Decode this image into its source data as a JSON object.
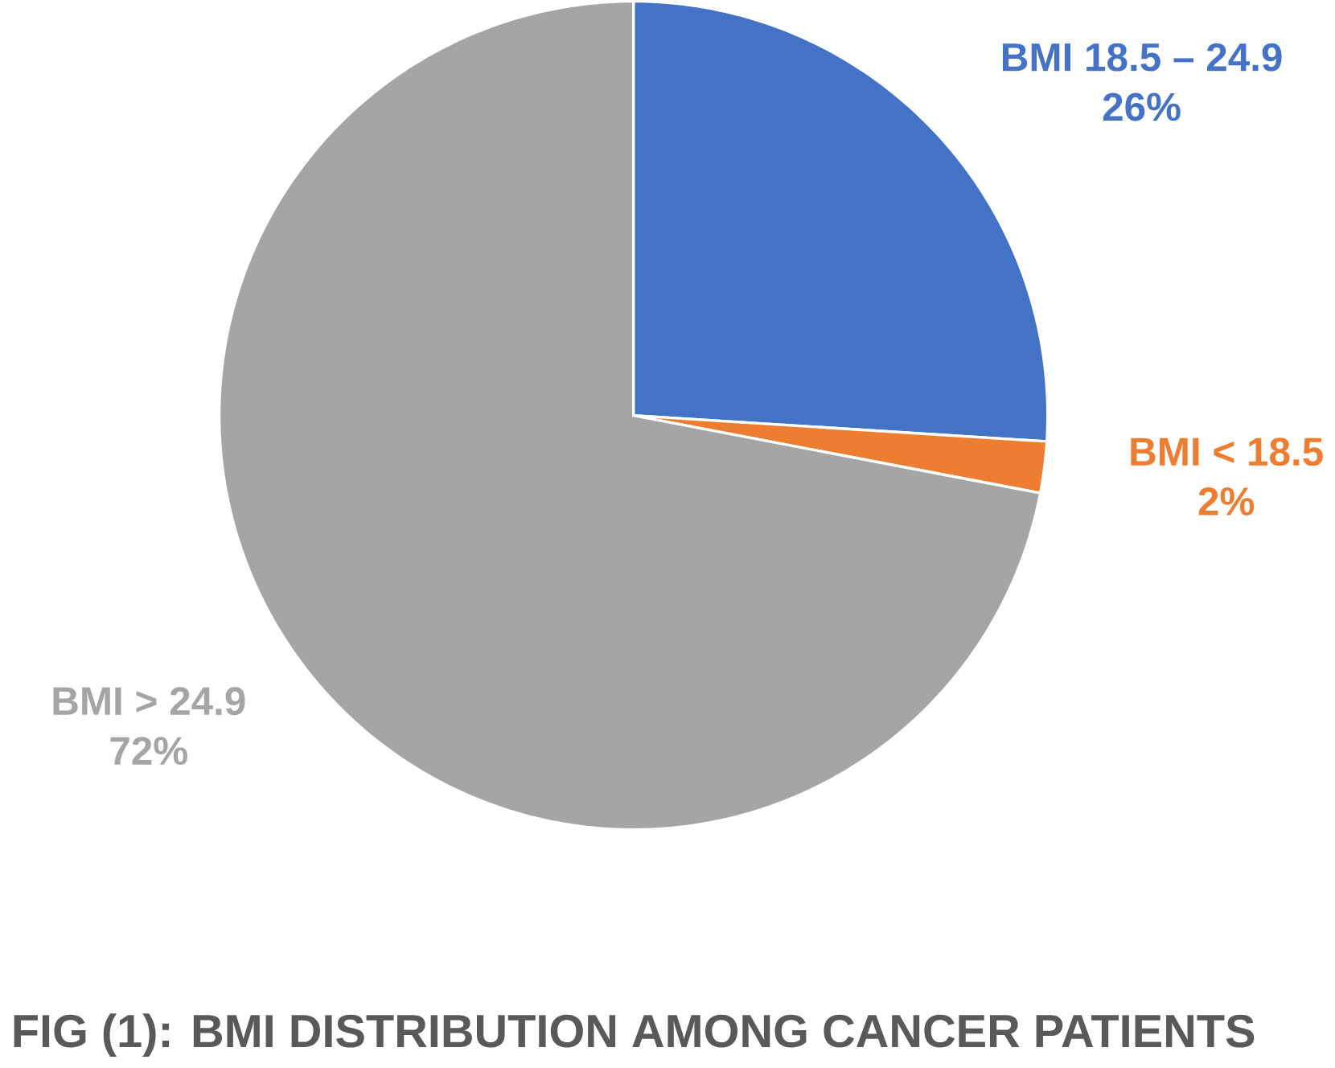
{
  "chart_data": {
    "type": "pie",
    "title": "FIG (1): BMI DISTRIBUTION AMONG CANCER PATIENTS",
    "categories": [
      "BMI  18.5 – 24.9",
      "BMI  < 18.5",
      "BMI  > 24.9"
    ],
    "values": [
      26,
      2,
      72
    ],
    "value_labels": [
      "26%",
      "2%",
      "72%"
    ],
    "colors": [
      "#4472c4",
      "#ed7d31",
      "#a5a5a5"
    ]
  }
}
